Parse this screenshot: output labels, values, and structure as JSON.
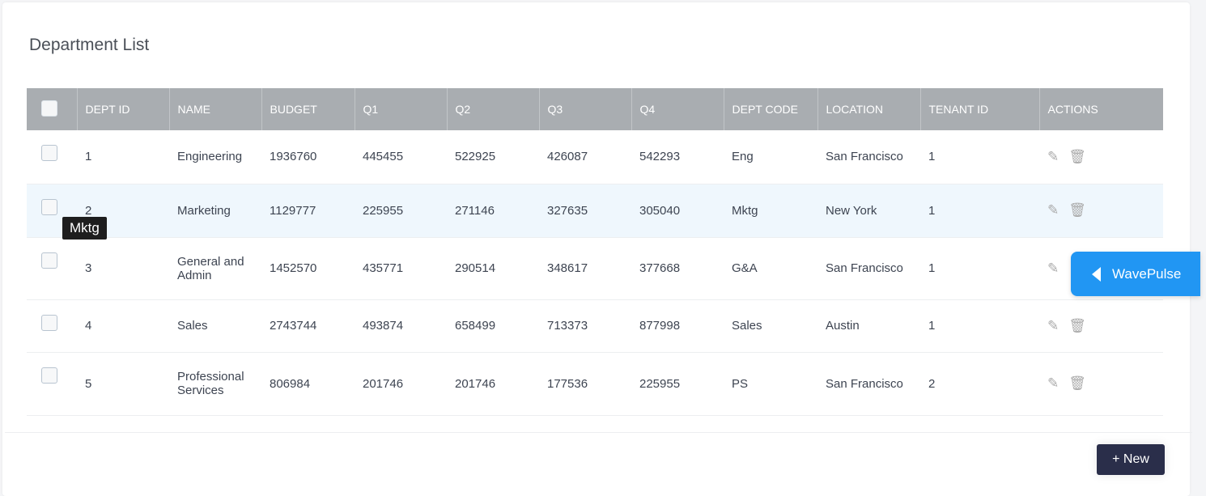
{
  "title": "Department List",
  "columns": [
    "DEPT ID",
    "NAME",
    "BUDGET",
    "Q1",
    "Q2",
    "Q3",
    "Q4",
    "DEPT CODE",
    "LOCATION",
    "TENANT ID",
    "ACTIONS"
  ],
  "rows": [
    [
      "1",
      "Engineering",
      "1936760",
      "445455",
      "522925",
      "426087",
      "542293",
      "Eng",
      "San Francisco",
      "1"
    ],
    [
      "2",
      "Marketing",
      "1129777",
      "225955",
      "271146",
      "327635",
      "305040",
      "Mktg",
      "New York",
      "1"
    ],
    [
      "3",
      "General and Admin",
      "1452570",
      "435771",
      "290514",
      "348617",
      "377668",
      "G&A",
      "San Francisco",
      "1"
    ],
    [
      "4",
      "Sales",
      "2743744",
      "493874",
      "658499",
      "713373",
      "877998",
      "Sales",
      "Austin",
      "1"
    ],
    [
      "5",
      "Professional Services",
      "806984",
      "201746",
      "201746",
      "177536",
      "225955",
      "PS",
      "San Francisco",
      "2"
    ]
  ],
  "tooltip": "Mktg",
  "new_button": "+ New",
  "widget_label": "WavePulse",
  "icons": {
    "edit": "pencil-icon",
    "delete": "trash-icon"
  },
  "colors": {
    "header": "#a9adb1",
    "highlight_row": "#eff7fd",
    "new_button": "#2a2e4a",
    "widget": "#2196f3"
  }
}
